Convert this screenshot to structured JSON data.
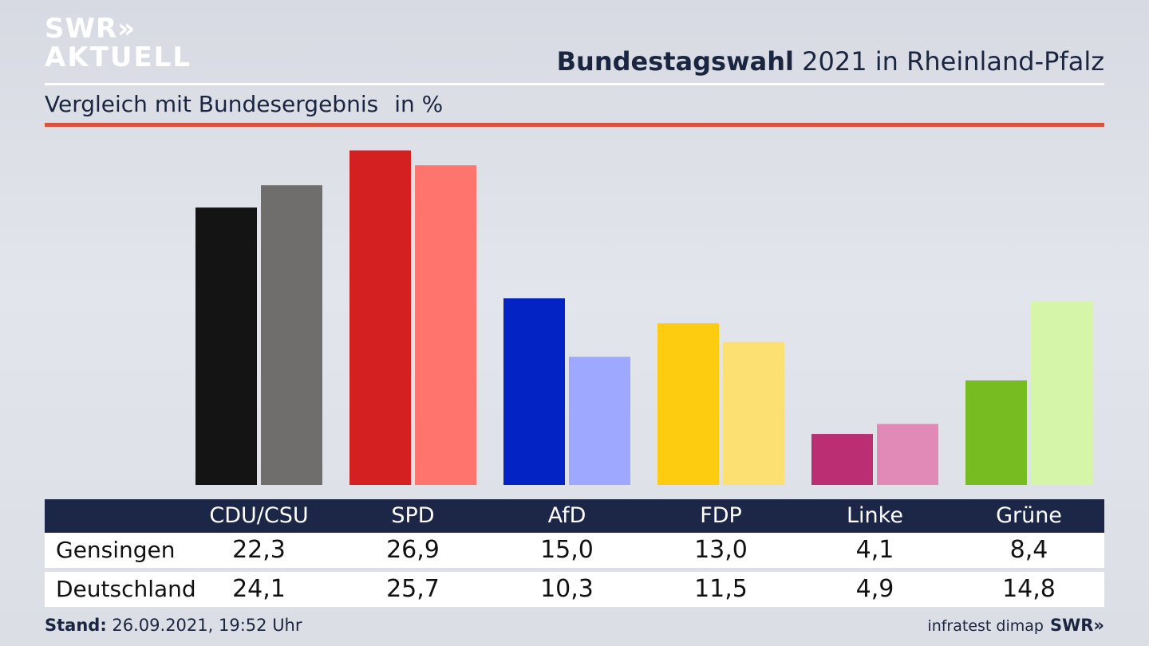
{
  "logo": {
    "line1": "SWR",
    "arrows": "»",
    "line2": "AKTUELL"
  },
  "header": {
    "title_bold": "Bundestagswahl",
    "title_rest": "2021 in Rheinland-Pfalz"
  },
  "subheader": {
    "text": "Vergleich mit Bundesergebnis",
    "unit": "in %"
  },
  "chart_data": {
    "type": "bar",
    "title": "Bundestagswahl 2021 in Rheinland-Pfalz",
    "subtitle": "Vergleich mit Bundesergebnis in %",
    "categories": [
      "CDU/CSU",
      "SPD",
      "AfD",
      "FDP",
      "Linke",
      "Grüne"
    ],
    "series": [
      {
        "name": "Gensingen",
        "values": [
          22.3,
          26.9,
          15.0,
          13.0,
          4.1,
          8.4
        ],
        "colors": [
          "#141414",
          "#d42020",
          "#0323c5",
          "#fdcb0f",
          "#bb2e74",
          "#77bc20"
        ]
      },
      {
        "name": "Deutschland",
        "values": [
          24.1,
          25.7,
          10.3,
          11.5,
          4.9,
          14.8
        ],
        "colors": [
          "#706e6c",
          "#ff746c",
          "#9ea8ff",
          "#fde072",
          "#e18ab8",
          "#d5f5a9"
        ]
      }
    ],
    "ylim": [
      0,
      27
    ],
    "grid": false,
    "legend": "table-below"
  },
  "table": {
    "rows": [
      {
        "label": "Gensingen",
        "cells": [
          "22,3",
          "26,9",
          "15,0",
          "13,0",
          "4,1",
          "8,4"
        ]
      },
      {
        "label": "Deutschland",
        "cells": [
          "24,1",
          "25,7",
          "10,3",
          "11,5",
          "4,9",
          "14,8"
        ]
      }
    ]
  },
  "footer": {
    "stand_label": "Stand:",
    "stand_value": "26.09.2021, 19:52 Uhr",
    "source": "infratest dimap",
    "brand": "SWR»"
  }
}
